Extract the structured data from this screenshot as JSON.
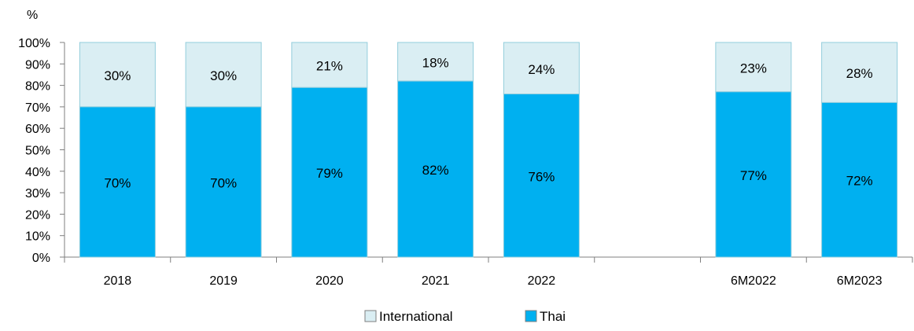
{
  "chart_data": {
    "type": "bar",
    "stacked": true,
    "ylabel": "%",
    "ylim": [
      0,
      100
    ],
    "yticks": [
      "0%",
      "10%",
      "20%",
      "30%",
      "40%",
      "50%",
      "60%",
      "70%",
      "80%",
      "90%",
      "100%"
    ],
    "categories": [
      "2018",
      "2019",
      "2020",
      "2021",
      "2022",
      "",
      "6M2022",
      "6M2023"
    ],
    "series": [
      {
        "name": "Thai",
        "color": "#00b0f0",
        "values": [
          70,
          70,
          79,
          82,
          76,
          null,
          77,
          72
        ],
        "labels": [
          "70%",
          "70%",
          "79%",
          "82%",
          "76%",
          "",
          "77%",
          "72%"
        ]
      },
      {
        "name": "International",
        "color": "#daeef3",
        "values": [
          30,
          30,
          21,
          18,
          24,
          null,
          23,
          28
        ],
        "labels": [
          "30%",
          "30%",
          "21%",
          "18%",
          "24%",
          "",
          "23%",
          "28%"
        ]
      }
    ],
    "legend": {
      "position": "bottom",
      "items": [
        {
          "name": "International",
          "color": "#daeef3"
        },
        {
          "name": "Thai",
          "color": "#00b0f0"
        }
      ]
    },
    "grid": false
  }
}
